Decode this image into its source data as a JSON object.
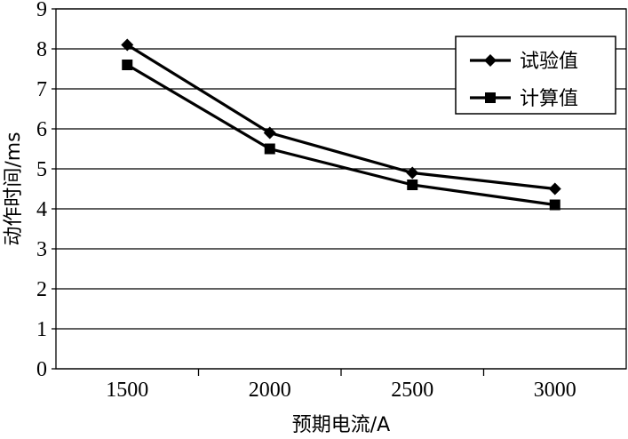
{
  "chart_data": {
    "type": "line",
    "categories": [
      "1500",
      "2000",
      "2500",
      "3000"
    ],
    "xlabel": "预期电流/A",
    "ylabel": "动作时间/ms",
    "ylim": [
      0,
      9
    ],
    "yticks": [
      "0",
      "1",
      "2",
      "3",
      "4",
      "5",
      "6",
      "7",
      "8",
      "9"
    ],
    "grid": "horizontal",
    "legend_position": "top-right",
    "series": [
      {
        "name": "试验值",
        "values": [
          8.1,
          5.9,
          4.9,
          4.5
        ],
        "marker": "diamond",
        "color": "#000000"
      },
      {
        "name": "计算值",
        "values": [
          7.6,
          5.5,
          4.6,
          4.1
        ],
        "marker": "square",
        "color": "#000000"
      }
    ]
  }
}
